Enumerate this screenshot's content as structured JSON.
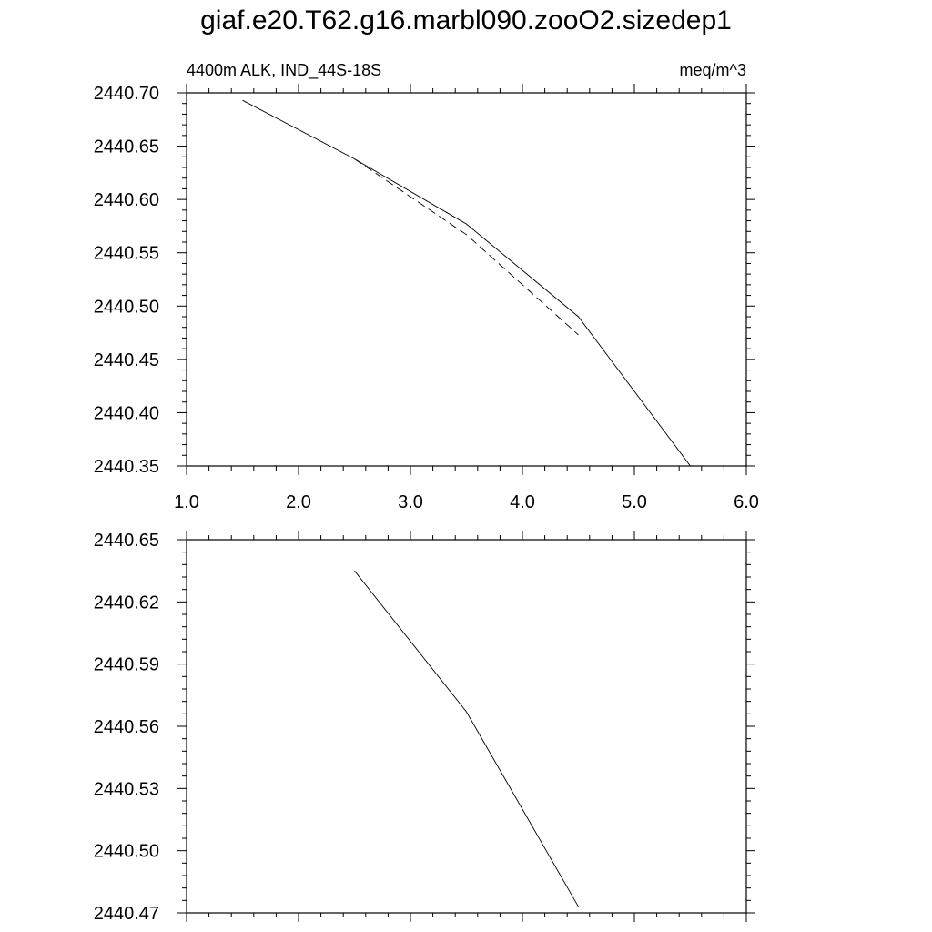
{
  "title": "giaf.e20.T62.g16.marbl090.zooO2.sizedep1",
  "chart_data": [
    {
      "type": "line",
      "left_subtitle": "4400m ALK, IND_44S-18S",
      "right_subtitle": "meq/m^3",
      "xlim": [
        1.0,
        6.0
      ],
      "ylim": [
        2440.35,
        2440.7
      ],
      "x_tick_labels": [
        "1.0",
        "2.0",
        "3.0",
        "4.0",
        "5.0",
        "6.0"
      ],
      "y_tick_labels": [
        "2440.70",
        "2440.65",
        "2440.60",
        "2440.55",
        "2440.50",
        "2440.45",
        "2440.40",
        "2440.35"
      ],
      "series": [
        {
          "style": "solid",
          "x": [
            1.5,
            2.5,
            3.5,
            4.5,
            5.5
          ],
          "y": [
            2440.693,
            2440.638,
            2440.577,
            2440.49,
            2440.35
          ]
        },
        {
          "style": "dashed",
          "x": [
            2.5,
            3.5,
            4.5
          ],
          "y": [
            2440.638,
            2440.567,
            2440.473
          ]
        }
      ]
    },
    {
      "type": "line",
      "xlim": [
        1.0,
        6.0
      ],
      "ylim": [
        2440.47,
        2440.65
      ],
      "y_tick_labels": [
        "2440.65",
        "2440.62",
        "2440.59",
        "2440.56",
        "2440.53",
        "2440.50",
        "2440.47"
      ],
      "series": [
        {
          "style": "solid",
          "x": [
            2.5,
            3.5,
            4.5
          ],
          "y": [
            2440.635,
            2440.567,
            2440.473
          ]
        }
      ]
    }
  ]
}
